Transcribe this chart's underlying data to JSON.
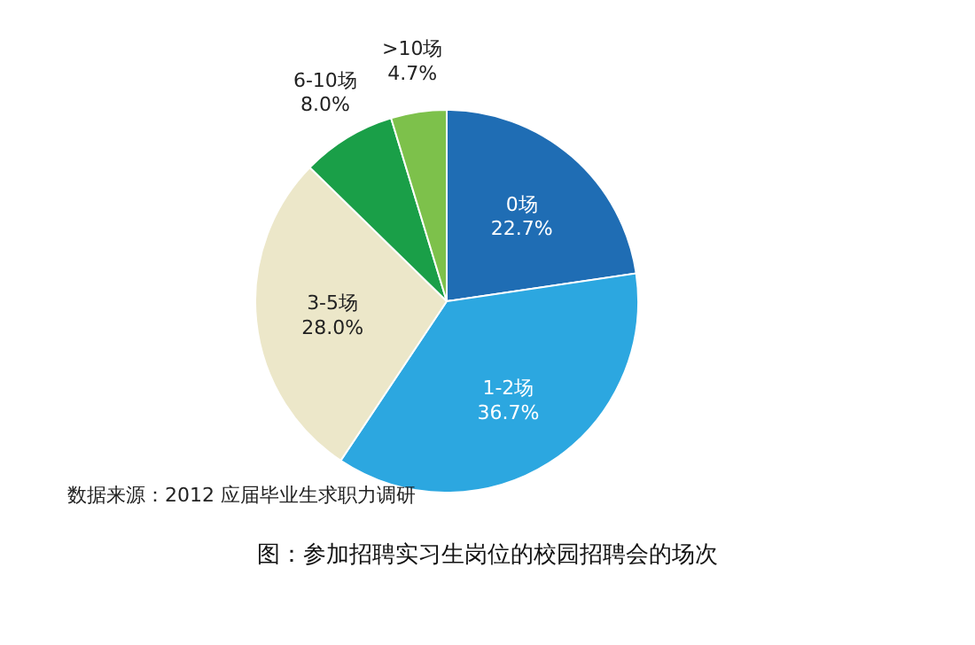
{
  "chart_data": {
    "type": "pie",
    "categories": [
      "0场",
      "1-2场",
      "3-5场",
      "6-10场",
      ">10场"
    ],
    "values": [
      22.7,
      36.7,
      28.0,
      8.0,
      4.7
    ],
    "value_labels": [
      "22.7%",
      "36.7%",
      "28.0%",
      "8.0%",
      "4.7%"
    ],
    "colors": [
      "#1f6db4",
      "#2ca7e0",
      "#ece7c9",
      "#1a9f48",
      "#7dc14b"
    ],
    "legend": false,
    "annotations": [
      "数据来源：2012 应届毕业生求职力调研",
      "图：参加招聘实习生岗位的校园招聘会的场次"
    ]
  }
}
